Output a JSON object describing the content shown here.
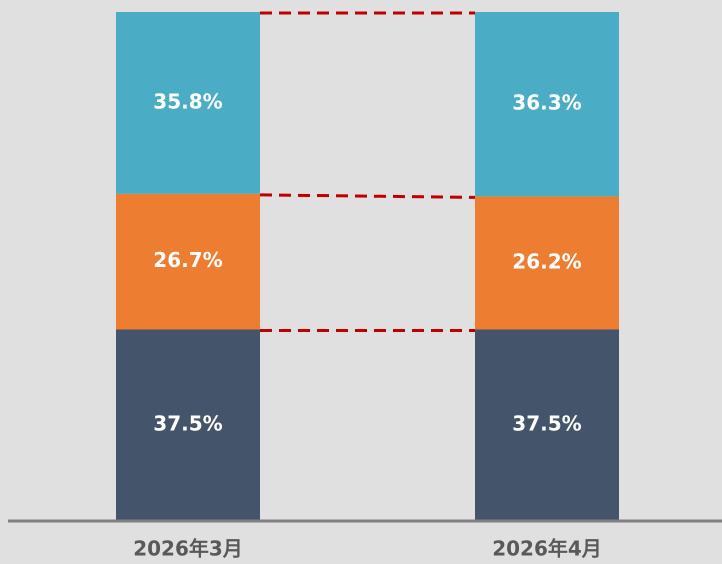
{
  "chart_data": {
    "type": "stacked_bar",
    "categories": [
      "2026年3月",
      "2026年4月"
    ],
    "series": [
      {
        "color": "#44546a",
        "values": [
          37.5,
          37.5
        ],
        "value_labels": [
          "37.5%",
          "37.5%"
        ]
      },
      {
        "color": "#ed7d31",
        "values": [
          26.7,
          26.2
        ],
        "value_labels": [
          "26.7%",
          "26.2%"
        ]
      },
      {
        "color": "#4bacc6",
        "values": [
          35.8,
          36.3
        ],
        "value_labels": [
          "35.8%",
          "36.3%"
        ]
      }
    ],
    "ylim": [
      0,
      100
    ],
    "connector_color": "#c00000",
    "axis_color": "#808080"
  }
}
